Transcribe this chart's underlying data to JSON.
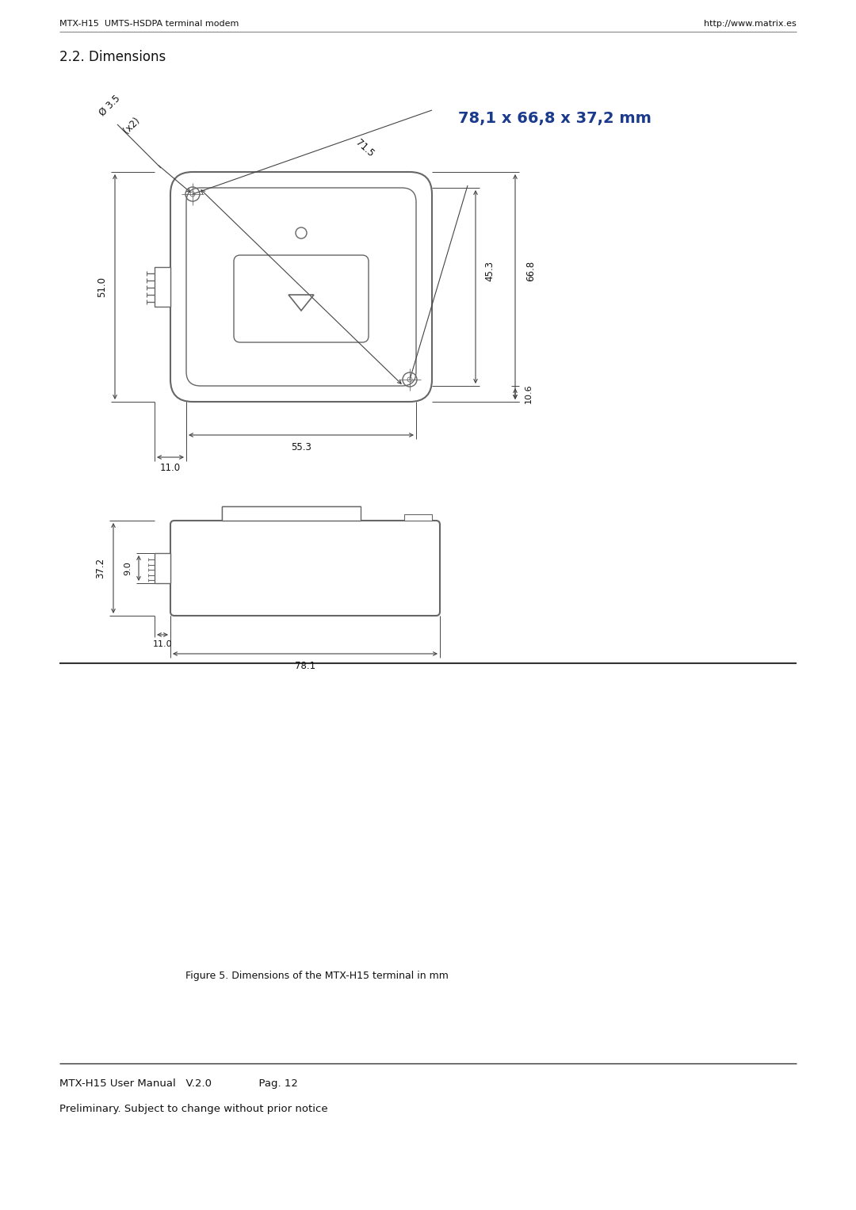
{
  "page_width": 10.8,
  "page_height": 15.27,
  "bg_color": "#ffffff",
  "header_left": "MTX-H15  UMTS-HSDPA terminal modem",
  "header_right": "http://www.matrix.es",
  "section_title": "2.2. Dimensions",
  "dim_title": "78,1 x 66,8 x 37,2 mm",
  "dim_title_color": "#1a3a8c",
  "figure_caption": "Figure 5. Dimensions of the MTX-H15 terminal in mm",
  "footer_line1": "MTX-H15 User Manual   V.2.0              Pag. 12",
  "footer_line2": "Preliminary. Subject to change without prior notice",
  "drawing_color": "#666666",
  "dim_line_color": "#444444",
  "text_color": "#111111"
}
